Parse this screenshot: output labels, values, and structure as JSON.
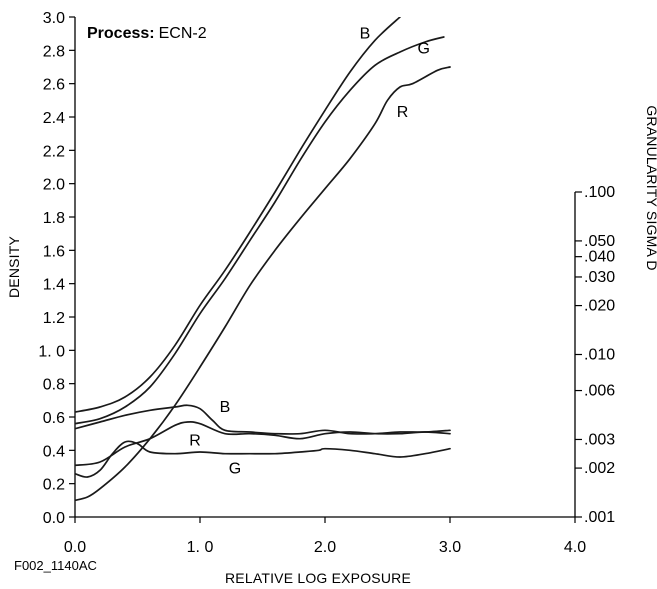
{
  "chart_data": {
    "type": "line",
    "process_label": "Process:",
    "process_value": "ECN-2",
    "figure_id": "F002_1140AC",
    "xlabel": "RELATIVE LOG EXPOSURE",
    "ylabel": "DENSITY",
    "y2label": "GRANULARITY SIGMA D",
    "xlim": [
      0,
      4
    ],
    "ylim": [
      0,
      3
    ],
    "x_ticks": [
      {
        "value": 0,
        "label": "0.0"
      },
      {
        "value": 1,
        "label": "1. 0"
      },
      {
        "value": 2,
        "label": "2.0"
      },
      {
        "value": 3,
        "label": "3.0"
      },
      {
        "value": 4,
        "label": "4.0"
      }
    ],
    "y_ticks": [
      {
        "value": 0.0,
        "label": "0.0"
      },
      {
        "value": 0.2,
        "label": "0.2"
      },
      {
        "value": 0.4,
        "label": "0.4"
      },
      {
        "value": 0.6,
        "label": "0.6"
      },
      {
        "value": 0.8,
        "label": "0.8"
      },
      {
        "value": 1.0,
        "label": "1. 0"
      },
      {
        "value": 1.2,
        "label": "1.2"
      },
      {
        "value": 1.4,
        "label": "1.4"
      },
      {
        "value": 1.6,
        "label": "1.6"
      },
      {
        "value": 1.8,
        "label": "1.8"
      },
      {
        "value": 2.0,
        "label": "2.0"
      },
      {
        "value": 2.2,
        "label": "2.2"
      },
      {
        "value": 2.4,
        "label": "2.4"
      },
      {
        "value": 2.6,
        "label": "2.6"
      },
      {
        "value": 2.8,
        "label": "2.8"
      },
      {
        "value": 3.0,
        "label": "3.0"
      }
    ],
    "y2_ticks": [
      {
        "value": 0.001,
        "label": ".001"
      },
      {
        "value": 0.002,
        "label": ".002"
      },
      {
        "value": 0.003,
        "label": ".003"
      },
      {
        "value": 0.006,
        "label": ".006"
      },
      {
        "value": 0.01,
        "label": ".010"
      },
      {
        "value": 0.02,
        "label": ".020"
      },
      {
        "value": 0.03,
        "label": ".030"
      },
      {
        "value": 0.04,
        "label": ".040"
      },
      {
        "value": 0.05,
        "label": ".050"
      },
      {
        "value": 0.1,
        "label": ".100"
      }
    ],
    "y2_scale": "log",
    "y2_ylim": [
      0.001,
      0.1
    ],
    "density_series": [
      {
        "name": "B",
        "points": [
          [
            0,
            0.63
          ],
          [
            0.2,
            0.66
          ],
          [
            0.4,
            0.72
          ],
          [
            0.6,
            0.84
          ],
          [
            0.8,
            1.03
          ],
          [
            1.0,
            1.27
          ],
          [
            1.2,
            1.48
          ],
          [
            1.4,
            1.71
          ],
          [
            1.6,
            1.95
          ],
          [
            1.8,
            2.2
          ],
          [
            2.0,
            2.44
          ],
          [
            2.2,
            2.67
          ],
          [
            2.4,
            2.86
          ],
          [
            2.6,
            3.0
          ]
        ],
        "label_at": [
          2.32,
          2.87
        ]
      },
      {
        "name": "G",
        "points": [
          [
            0,
            0.56
          ],
          [
            0.2,
            0.59
          ],
          [
            0.4,
            0.66
          ],
          [
            0.6,
            0.78
          ],
          [
            0.8,
            0.98
          ],
          [
            1.0,
            1.22
          ],
          [
            1.2,
            1.43
          ],
          [
            1.4,
            1.66
          ],
          [
            1.6,
            1.89
          ],
          [
            1.8,
            2.14
          ],
          [
            2.0,
            2.37
          ],
          [
            2.2,
            2.56
          ],
          [
            2.4,
            2.71
          ],
          [
            2.6,
            2.79
          ],
          [
            2.8,
            2.85
          ],
          [
            2.95,
            2.88
          ]
        ],
        "label_at": [
          2.79,
          2.78
        ]
      },
      {
        "name": "R",
        "points": [
          [
            0,
            0.1
          ],
          [
            0.1,
            0.12
          ],
          [
            0.2,
            0.17
          ],
          [
            0.4,
            0.3
          ],
          [
            0.6,
            0.47
          ],
          [
            0.8,
            0.67
          ],
          [
            1.0,
            0.9
          ],
          [
            1.2,
            1.14
          ],
          [
            1.4,
            1.39
          ],
          [
            1.6,
            1.6
          ],
          [
            1.8,
            1.79
          ],
          [
            2.0,
            1.97
          ],
          [
            2.2,
            2.15
          ],
          [
            2.4,
            2.36
          ],
          [
            2.5,
            2.5
          ],
          [
            2.6,
            2.58
          ],
          [
            2.7,
            2.6
          ],
          [
            2.9,
            2.68
          ],
          [
            3.0,
            2.7
          ]
        ],
        "label_at": [
          2.62,
          2.4
        ]
      }
    ],
    "granularity_series": [
      {
        "name": "B",
        "points": [
          [
            0,
            0.53
          ],
          [
            0.2,
            0.57
          ],
          [
            0.4,
            0.61
          ],
          [
            0.6,
            0.64
          ],
          [
            0.8,
            0.66
          ],
          [
            0.9,
            0.67
          ],
          [
            1.0,
            0.65
          ],
          [
            1.1,
            0.58
          ],
          [
            1.2,
            0.52
          ],
          [
            1.4,
            0.51
          ],
          [
            1.6,
            0.5
          ],
          [
            1.8,
            0.5
          ],
          [
            2.0,
            0.52
          ],
          [
            2.2,
            0.5
          ],
          [
            2.4,
            0.5
          ],
          [
            2.6,
            0.51
          ],
          [
            2.8,
            0.51
          ],
          [
            3.0,
            0.52
          ]
        ],
        "label_at": [
          1.2,
          0.63
        ]
      },
      {
        "name": "R",
        "points": [
          [
            0,
            0.31
          ],
          [
            0.2,
            0.33
          ],
          [
            0.4,
            0.42
          ],
          [
            0.6,
            0.47
          ],
          [
            0.8,
            0.55
          ],
          [
            0.9,
            0.57
          ],
          [
            1.0,
            0.56
          ],
          [
            1.2,
            0.5
          ],
          [
            1.4,
            0.5
          ],
          [
            1.6,
            0.49
          ],
          [
            1.8,
            0.47
          ],
          [
            2.0,
            0.5
          ],
          [
            2.2,
            0.51
          ],
          [
            2.4,
            0.5
          ],
          [
            2.6,
            0.5
          ],
          [
            2.8,
            0.51
          ],
          [
            3.0,
            0.5
          ]
        ],
        "label_at": [
          0.96,
          0.43
        ]
      },
      {
        "name": "G",
        "points": [
          [
            0,
            0.26
          ],
          [
            0.1,
            0.24
          ],
          [
            0.2,
            0.28
          ],
          [
            0.3,
            0.38
          ],
          [
            0.4,
            0.45
          ],
          [
            0.5,
            0.44
          ],
          [
            0.6,
            0.39
          ],
          [
            0.8,
            0.38
          ],
          [
            1.0,
            0.39
          ],
          [
            1.2,
            0.38
          ],
          [
            1.4,
            0.38
          ],
          [
            1.6,
            0.38
          ],
          [
            1.8,
            0.39
          ],
          [
            1.95,
            0.4
          ],
          [
            2.0,
            0.41
          ],
          [
            2.2,
            0.4
          ],
          [
            2.4,
            0.38
          ],
          [
            2.6,
            0.36
          ],
          [
            2.8,
            0.38
          ],
          [
            3.0,
            0.41
          ]
        ],
        "label_at": [
          1.28,
          0.26
        ]
      }
    ]
  }
}
